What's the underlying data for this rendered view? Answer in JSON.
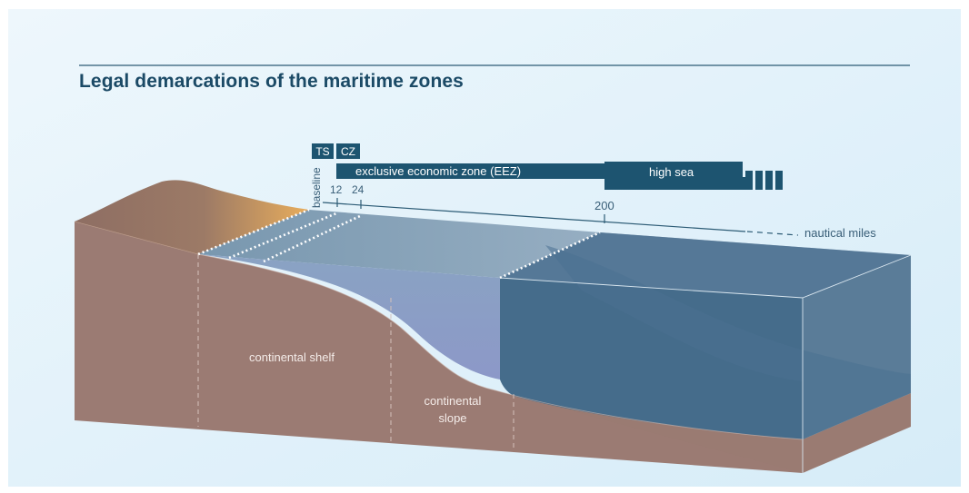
{
  "title": "Legal demarcations of the maritime zones",
  "bars": {
    "ts": "TS",
    "cz": "CZ",
    "eez": "exclusive economic zone (EEZ)",
    "high_sea": "high sea"
  },
  "baseline_label": "baseline",
  "ticks": {
    "t12": "12",
    "t24": "24",
    "t200": "200"
  },
  "axis_unit": "nautical miles",
  "regions": {
    "shelf": "continental shelf",
    "slope_line1": "continental",
    "slope_line2": "slope"
  },
  "colors": {
    "bar": "#1d5470",
    "title": "#1b4a66",
    "land": "#9a7b74",
    "land_top": "#8a6a60",
    "sand": "#e2a85a",
    "deep_water": "#3f6886",
    "shallow_water": "#8faac6"
  }
}
